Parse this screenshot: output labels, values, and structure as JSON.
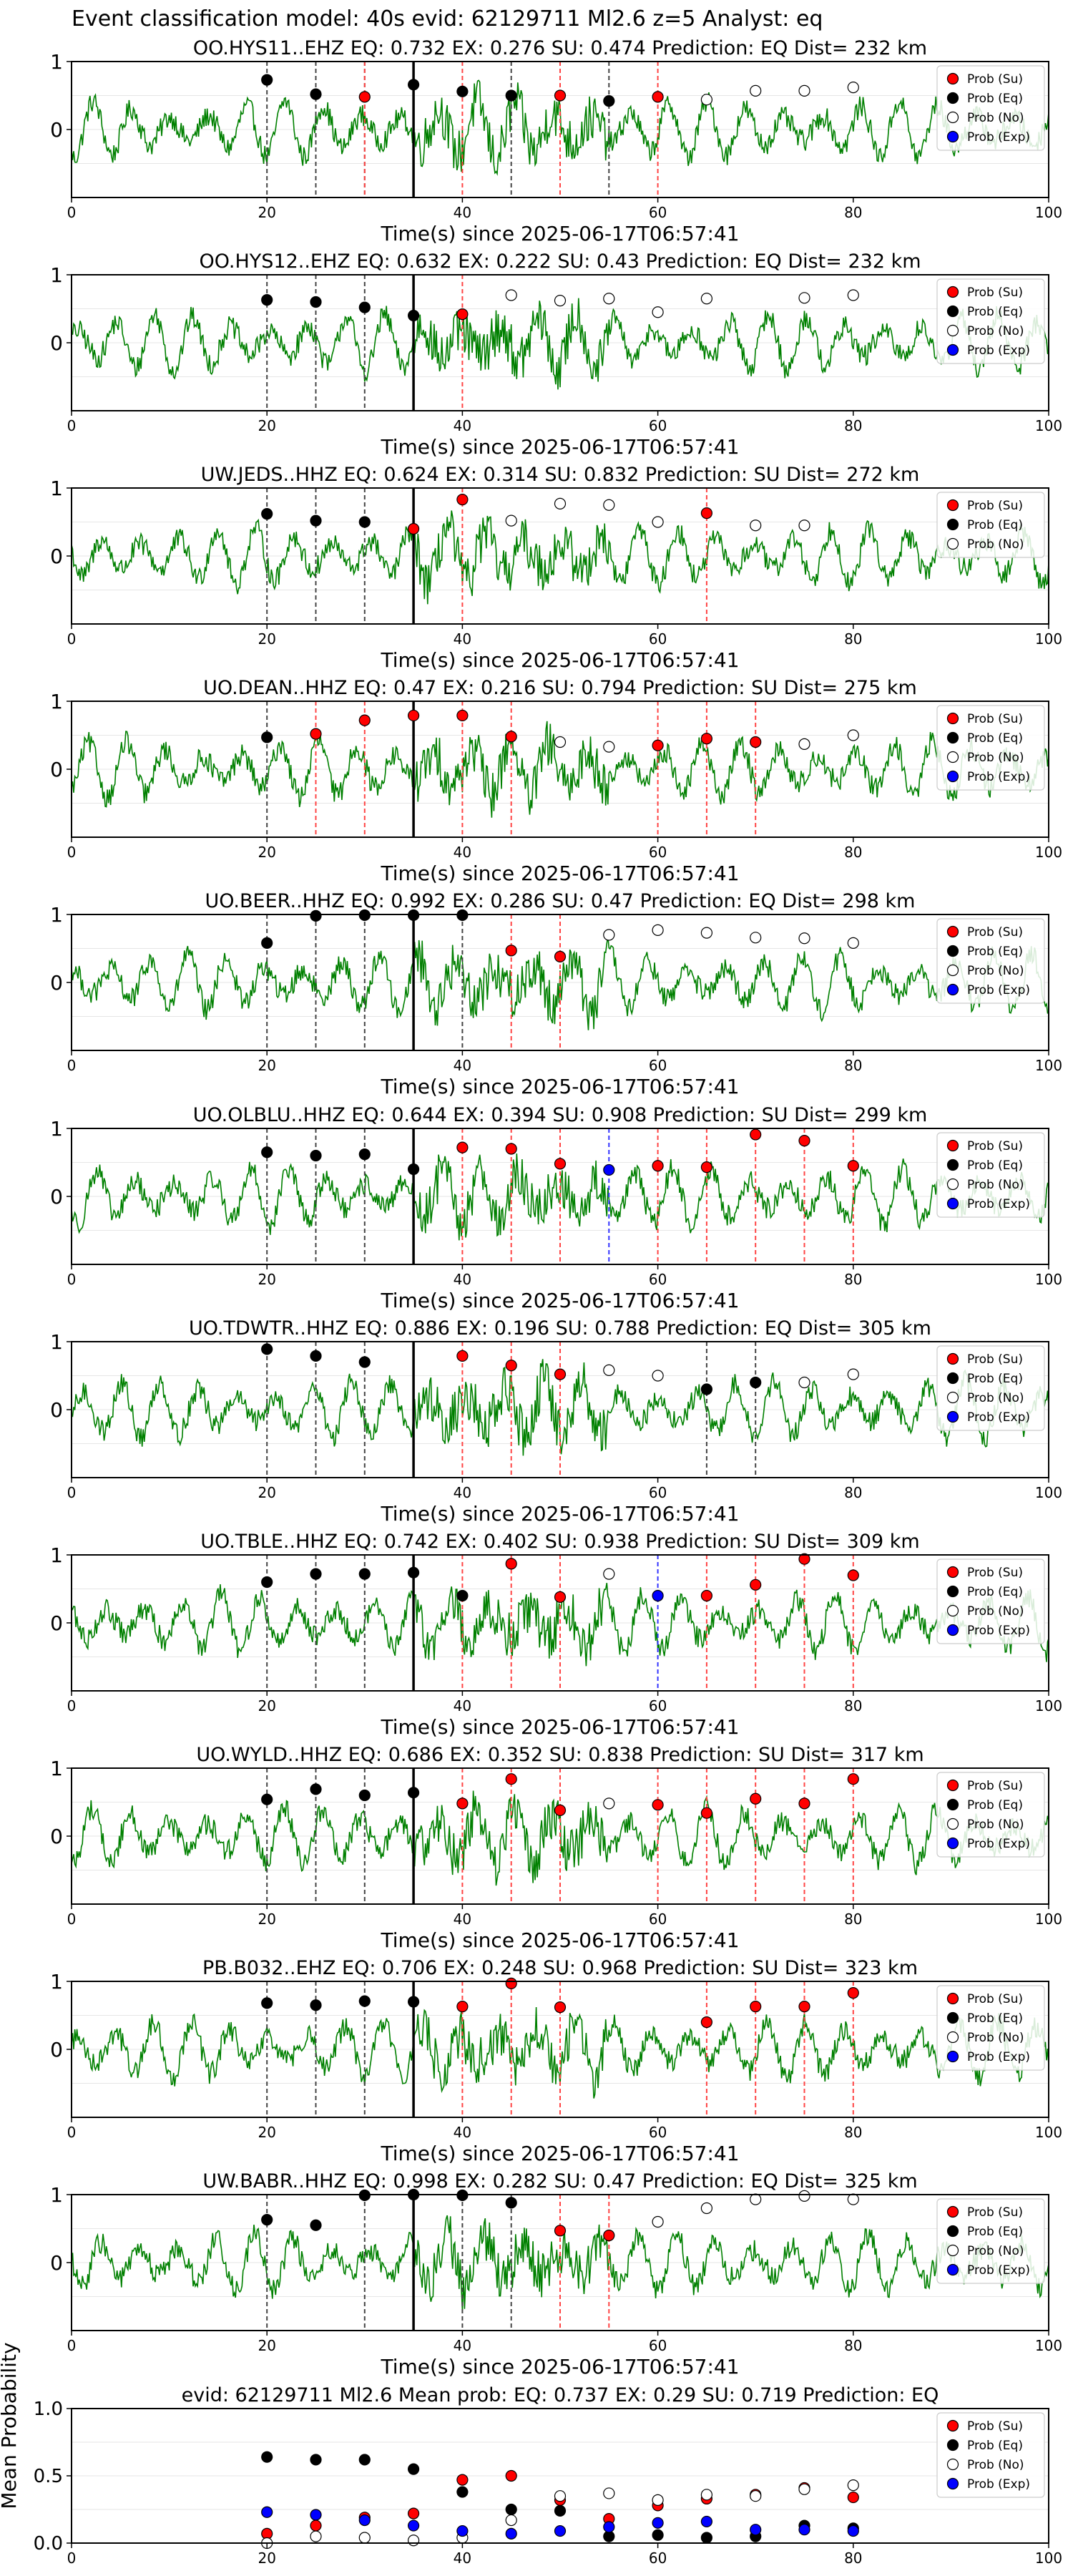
{
  "suptitle": "Event classification model: 40s evid: 62129711 Ml2.6 z=5 Analyst: eq",
  "colors": {
    "su": "#ff0000",
    "eq": "#000000",
    "no": "#ffffff",
    "exp": "#0000ff",
    "wave": "#008000"
  },
  "legend": [
    "Prob (Su)",
    "Prob (Eq)",
    "Prob (No)",
    "Prob (Exp)"
  ],
  "xlabel": "Time(s) since 2025-06-17T06:57:41",
  "x_ticks": [
    "0",
    "20",
    "40",
    "60",
    "80",
    "100"
  ],
  "y_ticks": [
    "0",
    "1"
  ],
  "chart_data": [
    {
      "type": "scatter",
      "title": "OO.HYS11..EHZ   EQ: 0.732  EX: 0.276  SU: 0.474   Prediction: EQ    Dist= 232 km",
      "xlim": [
        0,
        100
      ],
      "ylim": [
        -1,
        1
      ],
      "legend_entries": 4,
      "vlines_black": [
        20,
        25,
        30,
        45,
        55
      ],
      "vlines_red": [
        30,
        40,
        50,
        60
      ],
      "vlines_blue": [],
      "series": [
        {
          "name": "Prob (Su)",
          "x": [
            30,
            50,
            60
          ],
          "y": [
            0.48,
            0.5,
            0.48
          ]
        },
        {
          "name": "Prob (Eq)",
          "x": [
            20,
            25,
            35,
            40,
            45,
            55
          ],
          "y": [
            0.73,
            0.52,
            0.66,
            0.56,
            0.5,
            0.42
          ]
        },
        {
          "name": "Prob (No)",
          "x": [
            65,
            70,
            75,
            80
          ],
          "y": [
            0.44,
            0.57,
            0.57,
            0.62
          ]
        },
        {
          "name": "Prob (Exp)",
          "x": [],
          "y": []
        }
      ]
    },
    {
      "type": "scatter",
      "title": "OO.HYS12..EHZ   EQ: 0.632  EX: 0.222  SU: 0.43   Prediction: EQ    Dist= 232 km",
      "xlim": [
        0,
        100
      ],
      "ylim": [
        -1,
        1
      ],
      "legend_entries": 4,
      "vlines_black": [
        20,
        25,
        30
      ],
      "vlines_red": [
        40
      ],
      "vlines_blue": [],
      "series": [
        {
          "name": "Prob (Su)",
          "x": [
            40
          ],
          "y": [
            0.42
          ]
        },
        {
          "name": "Prob (Eq)",
          "x": [
            20,
            25,
            30,
            35
          ],
          "y": [
            0.63,
            0.6,
            0.52,
            0.4
          ]
        },
        {
          "name": "Prob (No)",
          "x": [
            45,
            50,
            55,
            60,
            65,
            75,
            80
          ],
          "y": [
            0.7,
            0.62,
            0.65,
            0.45,
            0.65,
            0.66,
            0.7
          ]
        },
        {
          "name": "Prob (Exp)",
          "x": [],
          "y": []
        }
      ]
    },
    {
      "type": "scatter",
      "title": "UW.JEDS..HHZ   EQ: 0.624  EX: 0.314  SU: 0.832   Prediction: SU    Dist= 272 km",
      "xlim": [
        0,
        100
      ],
      "ylim": [
        -1,
        1
      ],
      "legend_entries": 3,
      "vlines_black": [
        20,
        25,
        30
      ],
      "vlines_red": [
        35,
        40,
        65
      ],
      "vlines_blue": [],
      "series": [
        {
          "name": "Prob (Su)",
          "x": [
            35,
            40,
            65
          ],
          "y": [
            0.4,
            0.83,
            0.63
          ]
        },
        {
          "name": "Prob (Eq)",
          "x": [
            20,
            25,
            30
          ],
          "y": [
            0.62,
            0.52,
            0.5
          ]
        },
        {
          "name": "Prob (No)",
          "x": [
            45,
            50,
            55,
            60,
            70,
            75
          ],
          "y": [
            0.52,
            0.77,
            0.75,
            0.5,
            0.45,
            0.45
          ]
        },
        {
          "name": "Prob (Exp)",
          "x": [],
          "y": []
        }
      ]
    },
    {
      "type": "scatter",
      "title": "UO.DEAN..HHZ   EQ: 0.47  EX: 0.216  SU: 0.794   Prediction: SU    Dist= 275 km",
      "xlim": [
        0,
        100
      ],
      "ylim": [
        -1,
        1
      ],
      "legend_entries": 4,
      "vlines_black": [
        20
      ],
      "vlines_red": [
        25,
        30,
        35,
        40,
        45,
        60,
        65,
        70
      ],
      "vlines_blue": [],
      "series": [
        {
          "name": "Prob (Su)",
          "x": [
            25,
            30,
            35,
            40,
            45,
            60,
            65,
            70
          ],
          "y": [
            0.52,
            0.72,
            0.79,
            0.79,
            0.48,
            0.35,
            0.45,
            0.4
          ]
        },
        {
          "name": "Prob (Eq)",
          "x": [
            20
          ],
          "y": [
            0.47
          ]
        },
        {
          "name": "Prob (No)",
          "x": [
            50,
            55,
            75,
            80
          ],
          "y": [
            0.4,
            0.33,
            0.37,
            0.5
          ]
        },
        {
          "name": "Prob (Exp)",
          "x": [],
          "y": []
        }
      ]
    },
    {
      "type": "scatter",
      "title": "UO.BEER..HHZ   EQ: 0.992  EX: 0.286  SU: 0.47   Prediction: EQ    Dist= 298 km",
      "xlim": [
        0,
        100
      ],
      "ylim": [
        -1,
        1
      ],
      "legend_entries": 4,
      "vlines_black": [
        20,
        25,
        30,
        40
      ],
      "vlines_red": [
        45,
        50
      ],
      "vlines_blue": [],
      "series": [
        {
          "name": "Prob (Su)",
          "x": [
            45,
            50
          ],
          "y": [
            0.47,
            0.38
          ]
        },
        {
          "name": "Prob (Eq)",
          "x": [
            20,
            25,
            30,
            35,
            40
          ],
          "y": [
            0.58,
            0.98,
            0.99,
            0.99,
            0.99
          ]
        },
        {
          "name": "Prob (No)",
          "x": [
            55,
            60,
            65,
            70,
            75,
            80
          ],
          "y": [
            0.7,
            0.77,
            0.73,
            0.66,
            0.65,
            0.58
          ]
        },
        {
          "name": "Prob (Exp)",
          "x": [],
          "y": []
        }
      ]
    },
    {
      "type": "scatter",
      "title": "UO.OLBLU..HHZ   EQ: 0.644  EX: 0.394  SU: 0.908   Prediction: SU    Dist= 299 km",
      "xlim": [
        0,
        100
      ],
      "ylim": [
        -1,
        1
      ],
      "legend_entries": 4,
      "vlines_black": [
        20,
        25,
        30
      ],
      "vlines_red": [
        35,
        40,
        45,
        50,
        60,
        65,
        70,
        75,
        80
      ],
      "vlines_blue": [
        55
      ],
      "series": [
        {
          "name": "Prob (Su)",
          "x": [
            40,
            45,
            50,
            60,
            65,
            70,
            75,
            80
          ],
          "y": [
            0.72,
            0.7,
            0.48,
            0.45,
            0.43,
            0.91,
            0.82,
            0.45
          ]
        },
        {
          "name": "Prob (Eq)",
          "x": [
            20,
            25,
            30,
            35
          ],
          "y": [
            0.65,
            0.6,
            0.62,
            0.4
          ]
        },
        {
          "name": "Prob (No)",
          "x": [],
          "y": []
        },
        {
          "name": "Prob (Exp)",
          "x": [
            55
          ],
          "y": [
            0.39
          ]
        }
      ]
    },
    {
      "type": "scatter",
      "title": "UO.TDWTR..HHZ   EQ: 0.886  EX: 0.196  SU: 0.788   Prediction: EQ    Dist= 305 km",
      "xlim": [
        0,
        100
      ],
      "ylim": [
        -1,
        1
      ],
      "legend_entries": 4,
      "vlines_black": [
        20,
        25,
        30,
        65,
        70
      ],
      "vlines_red": [
        40,
        45,
        50
      ],
      "vlines_blue": [],
      "series": [
        {
          "name": "Prob (Su)",
          "x": [
            40,
            45,
            50
          ],
          "y": [
            0.79,
            0.65,
            0.52
          ]
        },
        {
          "name": "Prob (Eq)",
          "x": [
            20,
            25,
            30,
            65,
            70
          ],
          "y": [
            0.89,
            0.79,
            0.7,
            0.3,
            0.4
          ]
        },
        {
          "name": "Prob (No)",
          "x": [
            55,
            60,
            75,
            80
          ],
          "y": [
            0.58,
            0.5,
            0.4,
            0.52
          ]
        },
        {
          "name": "Prob (Exp)",
          "x": [],
          "y": []
        }
      ]
    },
    {
      "type": "scatter",
      "title": "UO.TBLE..HHZ   EQ: 0.742  EX: 0.402  SU: 0.938   Prediction: SU    Dist= 309 km",
      "xlim": [
        0,
        100
      ],
      "ylim": [
        -1,
        1
      ],
      "legend_entries": 4,
      "vlines_black": [
        20,
        25,
        30,
        35
      ],
      "vlines_red": [
        40,
        45,
        50,
        65,
        70,
        75,
        80
      ],
      "vlines_blue": [
        60
      ],
      "series": [
        {
          "name": "Prob (Su)",
          "x": [
            45,
            50,
            65,
            70,
            75,
            80
          ],
          "y": [
            0.87,
            0.38,
            0.4,
            0.56,
            0.94,
            0.7
          ]
        },
        {
          "name": "Prob (Eq)",
          "x": [
            20,
            25,
            30,
            35,
            40
          ],
          "y": [
            0.6,
            0.72,
            0.72,
            0.74,
            0.4
          ]
        },
        {
          "name": "Prob (No)",
          "x": [
            55
          ],
          "y": [
            0.72
          ]
        },
        {
          "name": "Prob (Exp)",
          "x": [
            60
          ],
          "y": [
            0.4
          ]
        }
      ]
    },
    {
      "type": "scatter",
      "title": "UO.WYLD..HHZ   EQ: 0.686  EX: 0.352  SU: 0.838   Prediction: SU    Dist= 317 km",
      "xlim": [
        0,
        100
      ],
      "ylim": [
        -1,
        1
      ],
      "legend_entries": 4,
      "vlines_black": [
        20,
        25,
        30,
        35
      ],
      "vlines_red": [
        40,
        45,
        50,
        60,
        65,
        70,
        75,
        80
      ],
      "vlines_blue": [],
      "series": [
        {
          "name": "Prob (Su)",
          "x": [
            40,
            45,
            50,
            60,
            65,
            70,
            75,
            80
          ],
          "y": [
            0.48,
            0.84,
            0.38,
            0.46,
            0.34,
            0.55,
            0.48,
            0.84
          ]
        },
        {
          "name": "Prob (Eq)",
          "x": [
            20,
            25,
            30,
            35
          ],
          "y": [
            0.54,
            0.69,
            0.6,
            0.64
          ]
        },
        {
          "name": "Prob (No)",
          "x": [
            55
          ],
          "y": [
            0.48
          ]
        },
        {
          "name": "Prob (Exp)",
          "x": [],
          "y": []
        }
      ]
    },
    {
      "type": "scatter",
      "title": "PB.B032..EHZ   EQ: 0.706  EX: 0.248  SU: 0.968   Prediction: SU    Dist= 323 km",
      "xlim": [
        0,
        100
      ],
      "ylim": [
        -1,
        1
      ],
      "legend_entries": 4,
      "vlines_black": [
        20,
        25,
        30
      ],
      "vlines_red": [
        40,
        45,
        50,
        65,
        70,
        75,
        80
      ],
      "vlines_blue": [],
      "series": [
        {
          "name": "Prob (Su)",
          "x": [
            40,
            45,
            50,
            65,
            70,
            75,
            80
          ],
          "y": [
            0.63,
            0.97,
            0.62,
            0.4,
            0.63,
            0.63,
            0.83
          ]
        },
        {
          "name": "Prob (Eq)",
          "x": [
            20,
            25,
            30,
            35
          ],
          "y": [
            0.68,
            0.65,
            0.71,
            0.7
          ]
        },
        {
          "name": "Prob (No)",
          "x": [],
          "y": []
        },
        {
          "name": "Prob (Exp)",
          "x": [],
          "y": []
        }
      ]
    },
    {
      "type": "scatter",
      "title": "UW.BABR..HHZ   EQ: 0.998  EX: 0.282  SU: 0.47   Prediction: EQ    Dist= 325 km",
      "xlim": [
        0,
        100
      ],
      "ylim": [
        -1,
        1
      ],
      "legend_entries": 4,
      "vlines_black": [
        20,
        30,
        40,
        45
      ],
      "vlines_red": [
        50,
        55
      ],
      "vlines_blue": [],
      "series": [
        {
          "name": "Prob (Su)",
          "x": [
            50,
            55
          ],
          "y": [
            0.47,
            0.4
          ]
        },
        {
          "name": "Prob (Eq)",
          "x": [
            20,
            25,
            30,
            35,
            40,
            45
          ],
          "y": [
            0.63,
            0.55,
            0.99,
            1.0,
            0.99,
            0.88
          ]
        },
        {
          "name": "Prob (No)",
          "x": [
            60,
            65,
            70,
            75,
            80
          ],
          "y": [
            0.6,
            0.8,
            0.93,
            0.98,
            0.93
          ]
        },
        {
          "name": "Prob (Exp)",
          "x": [],
          "y": []
        }
      ]
    },
    {
      "type": "scatter",
      "title": "evid: 62129711  Ml2.6   Mean prob:   EQ: 0.737  EX: 0.29  SU: 0.719   Prediction: EQ",
      "ylabel": "Mean Probability",
      "xlim": [
        0,
        100
      ],
      "ylim": [
        0,
        1
      ],
      "y_ticks": [
        "0.0",
        "0.5",
        "1.0"
      ],
      "grid": true,
      "series": [
        {
          "name": "Prob (Su)",
          "x": [
            20,
            25,
            30,
            35,
            40,
            45,
            50,
            55,
            60,
            65,
            70,
            75,
            80
          ],
          "y": [
            0.07,
            0.13,
            0.19,
            0.22,
            0.47,
            0.5,
            0.32,
            0.18,
            0.28,
            0.33,
            0.36,
            0.41,
            0.34
          ]
        },
        {
          "name": "Prob (Eq)",
          "x": [
            20,
            25,
            30,
            35,
            40,
            45,
            50,
            55,
            60,
            65,
            70,
            75,
            80
          ],
          "y": [
            0.64,
            0.62,
            0.62,
            0.55,
            0.38,
            0.25,
            0.24,
            0.05,
            0.06,
            0.04,
            0.05,
            0.13,
            0.11
          ]
        },
        {
          "name": "Prob (No)",
          "x": [
            20,
            25,
            30,
            35,
            40,
            45,
            50,
            55,
            60,
            65,
            70,
            75,
            80
          ],
          "y": [
            0.0,
            0.05,
            0.04,
            0.02,
            0.04,
            0.17,
            0.35,
            0.37,
            0.32,
            0.36,
            0.35,
            0.4,
            0.43
          ]
        },
        {
          "name": "Prob (Exp)",
          "x": [
            20,
            25,
            30,
            35,
            40,
            45,
            50,
            55,
            60,
            65,
            70,
            75,
            80
          ],
          "y": [
            0.23,
            0.21,
            0.17,
            0.13,
            0.09,
            0.07,
            0.09,
            0.12,
            0.15,
            0.16,
            0.1,
            0.1,
            0.09
          ]
        }
      ]
    }
  ]
}
